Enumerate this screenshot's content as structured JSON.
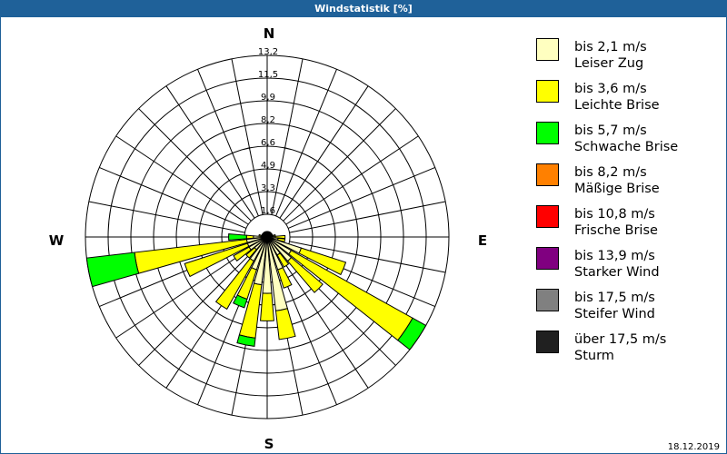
{
  "title": "Windstatistik [%]",
  "date": "18.12.2019",
  "chart_data": {
    "type": "windrose",
    "title": "Windstatistik [%]",
    "compass": {
      "N": "N",
      "E": "E",
      "S": "S",
      "W": "W"
    },
    "rmax": 13.2,
    "ring_labels": [
      "1,6",
      "3,3",
      "4,9",
      "6,6",
      "8,2",
      "9,9",
      "11,5",
      "13,2"
    ],
    "ring_values": [
      1.65,
      3.3,
      4.95,
      6.6,
      8.25,
      9.9,
      11.55,
      13.2
    ],
    "sector_step_deg": 11.25,
    "classes": [
      {
        "speed": "bis 2,1 m/s",
        "name": "Leiser Zug",
        "color": "#ffffc0"
      },
      {
        "speed": "bis 3,6 m/s",
        "name": "Leichte Brise",
        "color": "#ffff00"
      },
      {
        "speed": "bis 5,7 m/s",
        "name": "Schwache Brise",
        "color": "#00ff00"
      },
      {
        "speed": "bis 8,2 m/s",
        "name": "Mäßige Brise",
        "color": "#ff8000"
      },
      {
        "speed": "bis 10,8 m/s",
        "name": "Frische Brise",
        "color": "#ff0000"
      },
      {
        "speed": "bis 13,9 m/s",
        "name": "Starker Wind",
        "color": "#800080"
      },
      {
        "speed": "bis 17,5 m/s",
        "name": "Steifer Wind",
        "color": "#808080"
      },
      {
        "speed": "über 17,5 m/s",
        "name": "Sturm",
        "color": "#202020"
      }
    ],
    "sectors": [
      {
        "dir": 0,
        "values": [
          0.3,
          0.1,
          0
        ]
      },
      {
        "dir": 11.25,
        "values": [
          0.3,
          0.1,
          0
        ]
      },
      {
        "dir": 22.5,
        "values": [
          0.3,
          0.1,
          0
        ]
      },
      {
        "dir": 33.75,
        "values": [
          0.3,
          0.1,
          0
        ]
      },
      {
        "dir": 45,
        "values": [
          0.3,
          0.1,
          0
        ]
      },
      {
        "dir": 56.25,
        "values": [
          0.3,
          0.1,
          0
        ]
      },
      {
        "dir": 67.5,
        "values": [
          0.3,
          0.1,
          0
        ]
      },
      {
        "dir": 78.75,
        "values": [
          0.4,
          0.2,
          0
        ]
      },
      {
        "dir": 90,
        "values": [
          0.6,
          0.7,
          0
        ]
      },
      {
        "dir": 101.25,
        "values": [
          0.8,
          0.5,
          0
        ]
      },
      {
        "dir": 112.5,
        "values": [
          2.6,
          3.4,
          0
        ]
      },
      {
        "dir": 123.75,
        "values": [
          2.0,
          10.1,
          1.1
        ]
      },
      {
        "dir": 135,
        "values": [
          2.3,
          3.0,
          0
        ]
      },
      {
        "dir": 146.25,
        "values": [
          1.5,
          1.0,
          0
        ]
      },
      {
        "dir": 157.5,
        "values": [
          2.5,
          1.4,
          0
        ]
      },
      {
        "dir": 168.75,
        "values": [
          5.4,
          2.1,
          0
        ]
      },
      {
        "dir": 180,
        "values": [
          4.1,
          2.0,
          0
        ]
      },
      {
        "dir": 191.25,
        "values": [
          3.5,
          3.9,
          0.6
        ]
      },
      {
        "dir": 202.5,
        "values": [
          2.5,
          2.25,
          0.65
        ]
      },
      {
        "dir": 213.75,
        "values": [
          2.0,
          4.0,
          0
        ]
      },
      {
        "dir": 225,
        "values": [
          1.2,
          0.8,
          0
        ]
      },
      {
        "dir": 236.25,
        "values": [
          1.5,
          1.3,
          0
        ]
      },
      {
        "dir": 247.5,
        "values": [
          1.5,
          4.8,
          0
        ]
      },
      {
        "dir": 258.75,
        "values": [
          1.5,
          8.2,
          3.5
        ]
      },
      {
        "dir": 270,
        "values": [
          1.0,
          0.5,
          1.3
        ]
      },
      {
        "dir": 281.25,
        "values": [
          0.4,
          0.2,
          0
        ]
      },
      {
        "dir": 292.5,
        "values": [
          0.3,
          0.1,
          0
        ]
      },
      {
        "dir": 303.75,
        "values": [
          0.3,
          0.1,
          0
        ]
      },
      {
        "dir": 315,
        "values": [
          0.3,
          0.1,
          0
        ]
      },
      {
        "dir": 326.25,
        "values": [
          0.3,
          0.1,
          0
        ]
      },
      {
        "dir": 337.5,
        "values": [
          0.3,
          0.1,
          0
        ]
      },
      {
        "dir": 348.75,
        "values": [
          0.3,
          0.1,
          0
        ]
      }
    ]
  }
}
